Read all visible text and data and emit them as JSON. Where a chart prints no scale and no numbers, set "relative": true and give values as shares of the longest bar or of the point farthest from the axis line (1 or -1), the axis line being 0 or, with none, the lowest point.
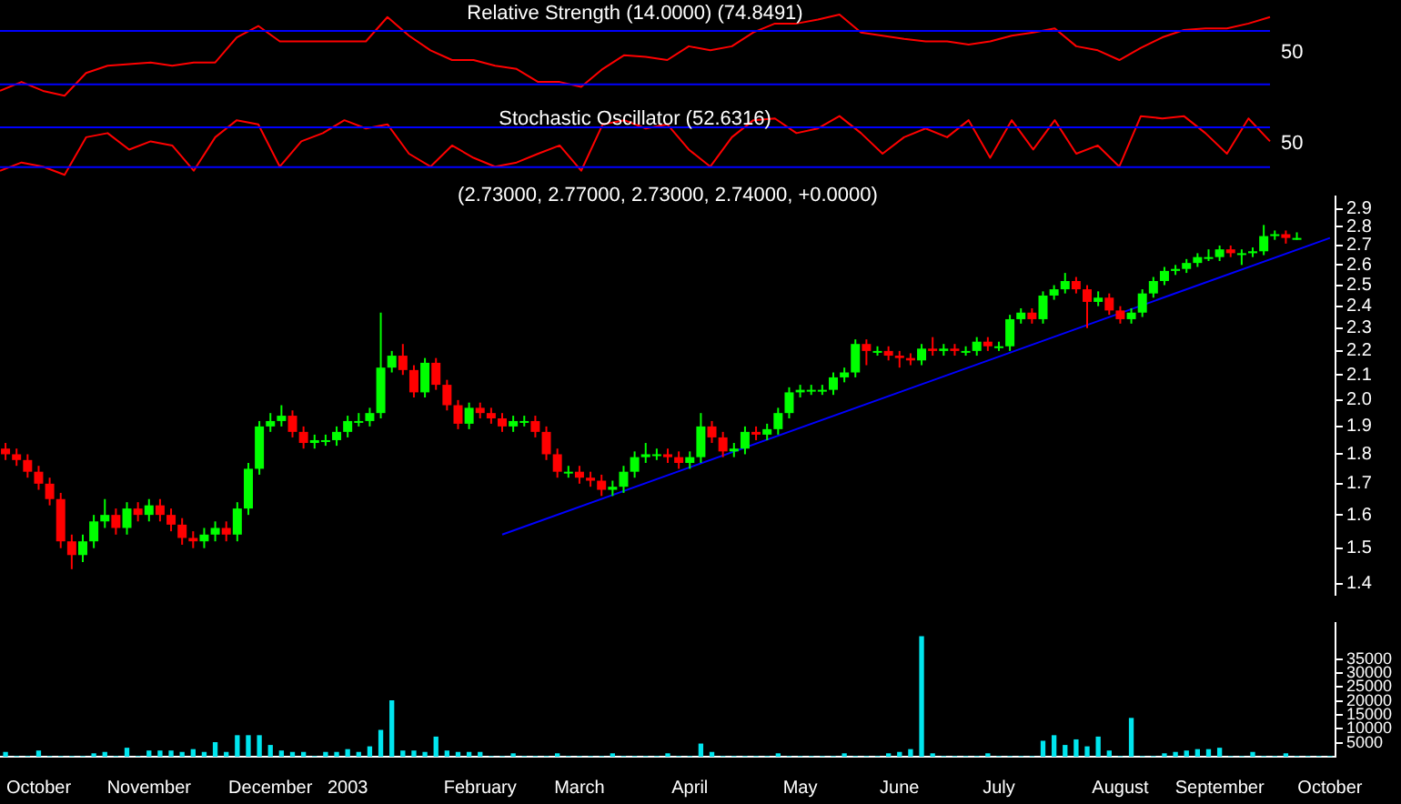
{
  "chart_data": [
    {
      "type": "line",
      "title": "Relative Strength (14.0000) (74.8491)",
      "relative": true,
      "tick_labels": false,
      "categories": [
        null,
        null,
        null,
        null,
        null,
        null,
        null,
        null,
        null,
        null,
        null,
        null,
        null,
        null,
        null,
        null,
        null,
        null,
        null,
        null,
        null,
        null,
        null,
        null,
        null,
        null,
        null,
        null,
        null,
        null,
        null,
        null,
        null,
        null,
        null,
        null,
        null,
        null,
        null,
        null,
        null,
        null,
        null,
        null,
        null,
        null,
        null,
        null,
        null,
        null,
        null,
        null,
        null,
        null,
        null,
        null,
        null,
        null,
        null,
        null
      ],
      "series": [
        {
          "color": "#ff0000",
          "values": [
            0.06,
            0.17,
            0.06,
            0,
            0.28,
            0.37,
            0.39,
            0.41,
            0.37,
            0.41,
            0.41,
            0.72,
            0.86,
            0.67,
            0.67,
            0.67,
            0.67,
            0.67,
            0.97,
            0.74,
            0.56,
            0.44,
            0.44,
            0.37,
            0.33,
            0.17,
            0.17,
            0.11,
            0.33,
            0.5,
            0.48,
            0.44,
            0.61,
            0.56,
            0.61,
            0.78,
            0.89,
            0.89,
            0.94,
            1,
            0.78,
            0.74,
            0.7,
            0.67,
            0.67,
            0.63,
            0.67,
            0.74,
            0.78,
            0.83,
            0.61,
            0.56,
            0.44,
            0.59,
            0.72,
            0.81,
            0.83,
            0.83,
            0.89,
            0.97
          ]
        }
      ],
      "ref_lines": [
        {
          "axis": "y",
          "value": 0.8,
          "color": "#0000ff"
        },
        {
          "axis": "y",
          "value": 0.14,
          "color": "#0000ff"
        }
      ],
      "annotations": [
        "50"
      ]
    },
    {
      "type": "line",
      "title": "Stochastic Oscillator (52.6316)",
      "relative": true,
      "tick_labels": false,
      "categories": [
        null,
        null,
        null,
        null,
        null,
        null,
        null,
        null,
        null,
        null,
        null,
        null,
        null,
        null,
        null,
        null,
        null,
        null,
        null,
        null,
        null,
        null,
        null,
        null,
        null,
        null,
        null,
        null,
        null,
        null,
        null,
        null,
        null,
        null,
        null,
        null,
        null,
        null,
        null,
        null,
        null,
        null,
        null,
        null,
        null,
        null,
        null,
        null,
        null,
        null,
        null,
        null,
        null,
        null,
        null,
        null,
        null,
        null,
        null,
        null
      ],
      "series": [
        {
          "color": "#ff0000",
          "values": [
            0.07,
            0.21,
            0.14,
            0,
            0.64,
            0.71,
            0.43,
            0.57,
            0.5,
            0.07,
            0.64,
            0.93,
            0.86,
            0.14,
            0.57,
            0.71,
            0.93,
            0.79,
            0.86,
            0.36,
            0.14,
            0.5,
            0.29,
            0.14,
            0.21,
            0.36,
            0.5,
            0.07,
            0.86,
            0.93,
            0.79,
            0.86,
            0.43,
            0.14,
            0.64,
            0.93,
            0.96,
            0.71,
            0.79,
            1,
            0.71,
            0.36,
            0.64,
            0.79,
            0.64,
            0.93,
            0.29,
            0.93,
            0.43,
            0.93,
            0.36,
            0.5,
            0.14,
            1,
            0.96,
            1,
            0.71,
            0.36,
            0.96,
            0.57
          ]
        }
      ],
      "ref_lines": [
        {
          "axis": "y",
          "value": 0.81,
          "color": "#0000ff"
        },
        {
          "axis": "y",
          "value": 0.13,
          "color": "#0000ff"
        }
      ],
      "annotations": [
        "50"
      ]
    },
    {
      "type": "candlestick",
      "title": "(2.73000, 2.77000, 2.73000, 2.74000, +0.0000)",
      "log": true,
      "tick_labels": "y",
      "ylim": [
        1.37,
        2.97
      ],
      "yticks": [
        1.4,
        1.5,
        1.6,
        1.7,
        1.8,
        1.9,
        {
          "value": 2,
          "label": "2.0"
        },
        2.1,
        2.2,
        2.3,
        2.4,
        2.5,
        2.6,
        2.7,
        2.8,
        2.9
      ],
      "categories": [
        null,
        null,
        null,
        null,
        null,
        null,
        null,
        null,
        null,
        null,
        null,
        null,
        null,
        null,
        null,
        null,
        null,
        null,
        null,
        null,
        null,
        null,
        null,
        null,
        null,
        null,
        null,
        null,
        null,
        null,
        null,
        null,
        null,
        null,
        null,
        null,
        null,
        null,
        null,
        null,
        null,
        null,
        null,
        null,
        null,
        null,
        null,
        null,
        null,
        null,
        null,
        null,
        null,
        null,
        null,
        null,
        null,
        null,
        null,
        null,
        null,
        null,
        null,
        null,
        null,
        null,
        null,
        null,
        null,
        null,
        null,
        null,
        null,
        null,
        null,
        null,
        null,
        null,
        null,
        null,
        null,
        null,
        null,
        null,
        null,
        null,
        null,
        null,
        null,
        null,
        null,
        null,
        null,
        null,
        null,
        null,
        null,
        null,
        null,
        null,
        null,
        null,
        null,
        null,
        null,
        null,
        null,
        null,
        null,
        null,
        null,
        null,
        null,
        null,
        null,
        null,
        null,
        null,
        null,
        null,
        null
      ],
      "ohlc": [
        [
          1.82,
          1.84,
          1.78,
          1.8
        ],
        [
          1.8,
          1.82,
          1.76,
          1.78
        ],
        [
          1.78,
          1.8,
          1.72,
          1.74
        ],
        [
          1.74,
          1.76,
          1.68,
          1.7
        ],
        [
          1.7,
          1.72,
          1.63,
          1.65
        ],
        [
          1.65,
          1.67,
          1.5,
          1.52
        ],
        [
          1.52,
          1.54,
          1.44,
          1.48
        ],
        [
          1.48,
          1.54,
          1.46,
          1.52
        ],
        [
          1.52,
          1.6,
          1.5,
          1.58
        ],
        [
          1.58,
          1.65,
          1.56,
          1.6
        ],
        [
          1.6,
          1.62,
          1.54,
          1.56
        ],
        [
          1.56,
          1.64,
          1.54,
          1.62
        ],
        [
          1.62,
          1.64,
          1.58,
          1.6
        ],
        [
          1.6,
          1.65,
          1.58,
          1.63
        ],
        [
          1.63,
          1.65,
          1.58,
          1.6
        ],
        [
          1.6,
          1.62,
          1.55,
          1.57
        ],
        [
          1.57,
          1.59,
          1.51,
          1.53
        ],
        [
          1.53,
          1.55,
          1.5,
          1.52
        ],
        [
          1.52,
          1.56,
          1.5,
          1.54
        ],
        [
          1.54,
          1.58,
          1.52,
          1.56
        ],
        [
          1.56,
          1.58,
          1.52,
          1.54
        ],
        [
          1.54,
          1.64,
          1.52,
          1.62
        ],
        [
          1.62,
          1.77,
          1.6,
          1.75
        ],
        [
          1.75,
          1.92,
          1.73,
          1.9
        ],
        [
          1.9,
          1.95,
          1.88,
          1.92
        ],
        [
          1.92,
          1.98,
          1.9,
          1.94
        ],
        [
          1.94,
          1.96,
          1.86,
          1.88
        ],
        [
          1.88,
          1.9,
          1.82,
          1.84
        ],
        [
          1.84,
          1.87,
          1.82,
          1.85
        ],
        [
          1.85,
          1.87,
          1.83,
          1.85
        ],
        [
          1.85,
          1.9,
          1.83,
          1.88
        ],
        [
          1.88,
          1.94,
          1.86,
          1.92
        ],
        [
          1.92,
          1.95,
          1.9,
          1.92
        ],
        [
          1.92,
          1.97,
          1.9,
          1.95
        ],
        [
          1.95,
          2.37,
          1.93,
          2.13
        ],
        [
          2.13,
          2.2,
          2.11,
          2.18
        ],
        [
          2.18,
          2.23,
          2.1,
          2.12
        ],
        [
          2.12,
          2.14,
          2.01,
          2.03
        ],
        [
          2.03,
          2.17,
          2.01,
          2.15
        ],
        [
          2.15,
          2.17,
          2.04,
          2.06
        ],
        [
          2.06,
          2.08,
          1.96,
          1.98
        ],
        [
          1.98,
          2.0,
          1.89,
          1.91
        ],
        [
          1.91,
          1.99,
          1.89,
          1.97
        ],
        [
          1.97,
          1.99,
          1.93,
          1.95
        ],
        [
          1.95,
          1.97,
          1.91,
          1.93
        ],
        [
          1.93,
          1.95,
          1.88,
          1.9
        ],
        [
          1.9,
          1.94,
          1.88,
          1.92
        ],
        [
          1.92,
          1.94,
          1.9,
          1.92
        ],
        [
          1.92,
          1.94,
          1.86,
          1.88
        ],
        [
          1.88,
          1.9,
          1.78,
          1.8
        ],
        [
          1.8,
          1.82,
          1.72,
          1.74
        ],
        [
          1.74,
          1.76,
          1.72,
          1.74
        ],
        [
          1.74,
          1.76,
          1.7,
          1.72
        ],
        [
          1.72,
          1.74,
          1.69,
          1.71
        ],
        [
          1.71,
          1.73,
          1.66,
          1.68
        ],
        [
          1.68,
          1.71,
          1.66,
          1.69
        ],
        [
          1.69,
          1.76,
          1.67,
          1.74
        ],
        [
          1.74,
          1.81,
          1.72,
          1.79
        ],
        [
          1.79,
          1.84,
          1.77,
          1.8
        ],
        [
          1.8,
          1.82,
          1.78,
          1.8
        ],
        [
          1.8,
          1.82,
          1.77,
          1.79
        ],
        [
          1.79,
          1.81,
          1.75,
          1.77
        ],
        [
          1.77,
          1.81,
          1.75,
          1.79
        ],
        [
          1.79,
          1.95,
          1.77,
          1.9
        ],
        [
          1.9,
          1.92,
          1.84,
          1.86
        ],
        [
          1.86,
          1.88,
          1.79,
          1.81
        ],
        [
          1.81,
          1.84,
          1.79,
          1.82
        ],
        [
          1.82,
          1.9,
          1.8,
          1.88
        ],
        [
          1.88,
          1.9,
          1.85,
          1.87
        ],
        [
          1.87,
          1.91,
          1.85,
          1.89
        ],
        [
          1.89,
          1.97,
          1.87,
          1.95
        ],
        [
          1.95,
          2.05,
          1.93,
          2.03
        ],
        [
          2.03,
          2.06,
          2.01,
          2.04
        ],
        [
          2.04,
          2.06,
          2.02,
          2.04
        ],
        [
          2.04,
          2.06,
          2.02,
          2.04
        ],
        [
          2.04,
          2.11,
          2.02,
          2.09
        ],
        [
          2.09,
          2.13,
          2.07,
          2.11
        ],
        [
          2.11,
          2.25,
          2.09,
          2.23
        ],
        [
          2.23,
          2.25,
          2.14,
          2.2
        ],
        [
          2.2,
          2.22,
          2.18,
          2.2
        ],
        [
          2.2,
          2.22,
          2.16,
          2.18
        ],
        [
          2.18,
          2.2,
          2.13,
          2.17
        ],
        [
          2.17,
          2.19,
          2.14,
          2.16
        ],
        [
          2.16,
          2.23,
          2.14,
          2.21
        ],
        [
          2.21,
          2.26,
          2.18,
          2.2
        ],
        [
          2.2,
          2.23,
          2.18,
          2.21
        ],
        [
          2.21,
          2.23,
          2.18,
          2.2
        ],
        [
          2.2,
          2.22,
          2.18,
          2.2
        ],
        [
          2.2,
          2.26,
          2.18,
          2.24
        ],
        [
          2.24,
          2.26,
          2.2,
          2.22
        ],
        [
          2.22,
          2.24,
          2.2,
          2.22
        ],
        [
          2.22,
          2.36,
          2.2,
          2.34
        ],
        [
          2.34,
          2.39,
          2.32,
          2.37
        ],
        [
          2.37,
          2.39,
          2.32,
          2.34
        ],
        [
          2.34,
          2.47,
          2.32,
          2.45
        ],
        [
          2.45,
          2.5,
          2.43,
          2.48
        ],
        [
          2.48,
          2.56,
          2.46,
          2.52
        ],
        [
          2.52,
          2.54,
          2.46,
          2.48
        ],
        [
          2.48,
          2.5,
          2.3,
          2.42
        ],
        [
          2.42,
          2.47,
          2.4,
          2.44
        ],
        [
          2.44,
          2.46,
          2.36,
          2.38
        ],
        [
          2.38,
          2.4,
          2.32,
          2.34
        ],
        [
          2.34,
          2.39,
          2.32,
          2.37
        ],
        [
          2.37,
          2.48,
          2.35,
          2.46
        ],
        [
          2.46,
          2.54,
          2.44,
          2.52
        ],
        [
          2.52,
          2.59,
          2.5,
          2.57
        ],
        [
          2.57,
          2.6,
          2.55,
          2.58
        ],
        [
          2.58,
          2.63,
          2.56,
          2.61
        ],
        [
          2.61,
          2.66,
          2.59,
          2.64
        ],
        [
          2.64,
          2.68,
          2.62,
          2.64
        ],
        [
          2.64,
          2.7,
          2.62,
          2.68
        ],
        [
          2.68,
          2.7,
          2.64,
          2.66
        ],
        [
          2.66,
          2.68,
          2.6,
          2.66
        ],
        [
          2.66,
          2.69,
          2.64,
          2.67
        ],
        [
          2.67,
          2.81,
          2.65,
          2.75
        ],
        [
          2.75,
          2.78,
          2.73,
          2.76
        ],
        [
          2.76,
          2.78,
          2.71,
          2.74
        ],
        [
          2.73,
          2.77,
          2.73,
          2.74
        ],
        null,
        null,
        null
      ],
      "colors": [
        "#ff0000",
        "#ff0000",
        "#ff0000",
        "#ff0000",
        "#ff0000",
        "#ff0000",
        "#ff0000",
        "#00ff00",
        "#00ff00",
        "#00ff00",
        "#ff0000",
        "#00ff00",
        "#ff0000",
        "#00ff00",
        "#ff0000",
        "#ff0000",
        "#ff0000",
        "#ff0000",
        "#00ff00",
        "#00ff00",
        "#ff0000",
        "#00ff00",
        "#00ff00",
        "#00ff00",
        "#00ff00",
        "#00ff00",
        "#ff0000",
        "#ff0000",
        "#00ff00",
        "#00ff00",
        "#00ff00",
        "#00ff00",
        "#00ff00",
        "#00ff00",
        "#00ff00",
        "#00ff00",
        "#ff0000",
        "#ff0000",
        "#00ff00",
        "#ff0000",
        "#ff0000",
        "#ff0000",
        "#00ff00",
        "#ff0000",
        "#ff0000",
        "#ff0000",
        "#00ff00",
        "#00ff00",
        "#ff0000",
        "#ff0000",
        "#ff0000",
        "#00ff00",
        "#ff0000",
        "#ff0000",
        "#ff0000",
        "#00ff00",
        "#00ff00",
        "#00ff00",
        "#00ff00",
        "#00ff00",
        "#ff0000",
        "#ff0000",
        "#00ff00",
        "#00ff00",
        "#ff0000",
        "#ff0000",
        "#00ff00",
        "#00ff00",
        "#ff0000",
        "#00ff00",
        "#00ff00",
        "#00ff00",
        "#00ff00",
        "#00ff00",
        "#00ff00",
        "#00ff00",
        "#00ff00",
        "#00ff00",
        "#ff0000",
        "#00ff00",
        "#ff0000",
        "#ff0000",
        "#ff0000",
        "#00ff00",
        "#ff0000",
        "#00ff00",
        "#ff0000",
        "#00ff00",
        "#00ff00",
        "#ff0000",
        "#00ff00",
        "#00ff00",
        "#00ff00",
        "#ff0000",
        "#00ff00",
        "#00ff00",
        "#00ff00",
        "#ff0000",
        "#ff0000",
        "#00ff00",
        "#ff0000",
        "#ff0000",
        "#00ff00",
        "#00ff00",
        "#00ff00",
        "#00ff00",
        "#00ff00",
        "#00ff00",
        "#00ff00",
        "#00ff00",
        "#00ff00",
        "#ff0000",
        "#00ff00",
        "#00ff00",
        "#00ff00",
        "#00ff00",
        "#ff0000",
        "#00ff00",
        null,
        null,
        null
      ],
      "series": [
        {
          "type": "line",
          "color": "#0000ff",
          "values": [
            null,
            null,
            null,
            null,
            null,
            null,
            null,
            null,
            null,
            null,
            null,
            null,
            null,
            null,
            null,
            null,
            null,
            null,
            null,
            null,
            null,
            null,
            null,
            null,
            null,
            null,
            null,
            null,
            null,
            null,
            null,
            null,
            null,
            null,
            null,
            null,
            null,
            null,
            null,
            null,
            null,
            null,
            null,
            null,
            null,
            1.54,
            null,
            null,
            null,
            null,
            null,
            null,
            null,
            null,
            null,
            null,
            null,
            null,
            null,
            null,
            null,
            null,
            null,
            null,
            null,
            null,
            null,
            null,
            null,
            null,
            null,
            null,
            null,
            null,
            null,
            null,
            null,
            null,
            null,
            null,
            null,
            null,
            null,
            null,
            null,
            null,
            null,
            null,
            null,
            null,
            null,
            null,
            null,
            null,
            null,
            null,
            null,
            null,
            null,
            null,
            null,
            null,
            null,
            null,
            null,
            null,
            null,
            null,
            null,
            null,
            null,
            null,
            null,
            null,
            null,
            null,
            null,
            null,
            null,
            null,
            2.74
          ]
        }
      ]
    },
    {
      "type": "bar",
      "color": "#00e5ee",
      "ylim": [
        0,
        48000
      ],
      "yticks": [
        5000,
        10000,
        15000,
        20000,
        25000,
        30000,
        35000
      ],
      "categories": [
        null,
        null,
        null,
        "October",
        null,
        null,
        null,
        null,
        null,
        null,
        null,
        null,
        null,
        "November",
        null,
        null,
        null,
        null,
        null,
        null,
        null,
        null,
        null,
        null,
        "December",
        null,
        null,
        null,
        null,
        null,
        null,
        "2003",
        null,
        null,
        null,
        null,
        null,
        null,
        null,
        null,
        null,
        null,
        null,
        "February",
        null,
        null,
        null,
        null,
        null,
        null,
        null,
        null,
        "March",
        null,
        null,
        null,
        null,
        null,
        null,
        null,
        null,
        null,
        "April",
        null,
        null,
        null,
        null,
        null,
        null,
        null,
        null,
        null,
        "May",
        null,
        null,
        null,
        null,
        null,
        null,
        null,
        null,
        "June",
        null,
        null,
        null,
        null,
        null,
        null,
        null,
        null,
        "July",
        null,
        null,
        null,
        null,
        null,
        null,
        null,
        null,
        null,
        null,
        "August",
        null,
        null,
        null,
        null,
        null,
        null,
        null,
        null,
        "September",
        null,
        null,
        null,
        null,
        null,
        null,
        null,
        null,
        null,
        "October"
      ],
      "values": [
        1500,
        0,
        0,
        2000,
        0,
        0,
        0,
        0,
        1000,
        1500,
        0,
        3000,
        0,
        2000,
        2000,
        2000,
        1500,
        2500,
        1500,
        5000,
        1500,
        7500,
        7500,
        7500,
        4000,
        2000,
        1500,
        1500,
        0,
        1500,
        1500,
        2500,
        1500,
        3500,
        9400,
        20000,
        2000,
        2000,
        1500,
        7000,
        2000,
        1500,
        1500,
        1500,
        0,
        0,
        1000,
        0,
        0,
        0,
        1000,
        0,
        0,
        0,
        0,
        1000,
        0,
        0,
        0,
        0,
        1000,
        0,
        0,
        4500,
        1500,
        0,
        0,
        0,
        0,
        0,
        1000,
        0,
        0,
        0,
        0,
        0,
        1000,
        0,
        0,
        0,
        1000,
        1500,
        2500,
        43000,
        1000,
        0,
        0,
        0,
        0,
        1000,
        0,
        0,
        0,
        0,
        5500,
        7500,
        4000,
        6000,
        3500,
        7000,
        2000,
        0,
        13700,
        0,
        0,
        1000,
        1500,
        2000,
        2500,
        2500,
        3000,
        0,
        0,
        1500,
        0,
        0,
        1000,
        0,
        0,
        0,
        0
      ]
    }
  ]
}
